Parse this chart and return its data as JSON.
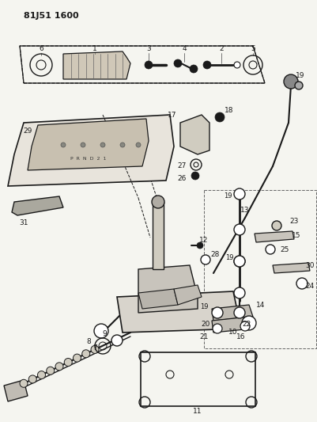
{
  "title": "81J51 1600",
  "bg_color": "#f5f5f0",
  "line_color": "#1a1a1a",
  "fig_width": 4.02,
  "fig_height": 5.33,
  "dpi": 100
}
